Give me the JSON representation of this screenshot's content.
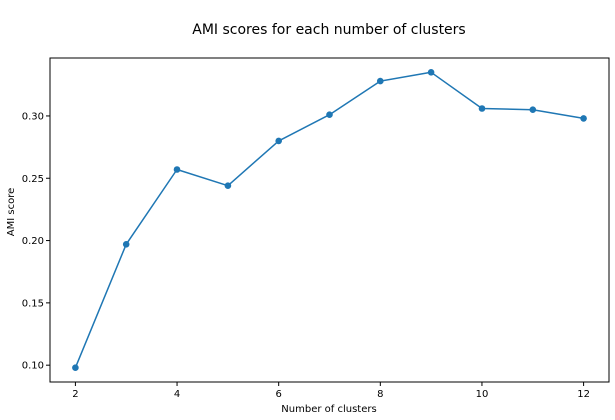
{
  "chart_data": {
    "type": "line",
    "title": "AMI scores for each number of clusters",
    "xlabel": "Number of clusters",
    "ylabel": "AMI score",
    "xlim": [
      1.5,
      12.5
    ],
    "ylim": [
      0.0865,
      0.3465
    ],
    "xticks": [
      2,
      4,
      6,
      8,
      10,
      12
    ],
    "yticks": [
      0.1,
      0.15,
      0.2,
      0.25,
      0.3
    ],
    "ytick_labels": [
      "0.10",
      "0.15",
      "0.20",
      "0.25",
      "0.30"
    ],
    "grid": false,
    "color": "#1f77b4",
    "marker": "circle",
    "series": [
      {
        "x": [
          2,
          3,
          4,
          5,
          6,
          7,
          8,
          9,
          10,
          11,
          12
        ],
        "values": [
          0.098,
          0.197,
          0.257,
          0.244,
          0.28,
          0.301,
          0.328,
          0.335,
          0.306,
          0.305,
          0.298
        ]
      }
    ]
  }
}
